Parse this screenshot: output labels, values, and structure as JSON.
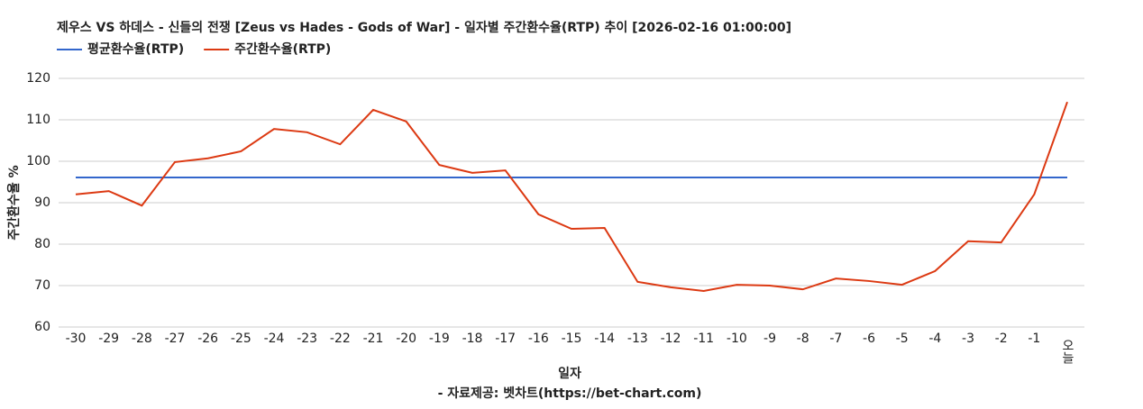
{
  "chart_data": {
    "type": "line",
    "title": "제우스 VS 하데스 - 신들의 전쟁 [Zeus vs Hades - Gods of War] - 일자별 주간환수율(RTP) 추이 [2026-02-16 01:00:00]",
    "x_label": "일자",
    "y_label": "주간환수율 %",
    "source": "- 자료제공: 벳차트(https://bet-chart.com)",
    "categories": [
      "-30",
      "-29",
      "-28",
      "-27",
      "-26",
      "-25",
      "-24",
      "-23",
      "-22",
      "-21",
      "-20",
      "-19",
      "-18",
      "-17",
      "-16",
      "-15",
      "-14",
      "-13",
      "-12",
      "-11",
      "-10",
      "-9",
      "-8",
      "-7",
      "-6",
      "-5",
      "-4",
      "-3",
      "-2",
      "-1",
      "오늘"
    ],
    "series": [
      {
        "name": "평균환수율(RTP)",
        "color": "#3366cc",
        "values": [
          96.1,
          96.1,
          96.1,
          96.1,
          96.1,
          96.1,
          96.1,
          96.1,
          96.1,
          96.1,
          96.1,
          96.1,
          96.1,
          96.1,
          96.1,
          96.1,
          96.1,
          96.1,
          96.1,
          96.1,
          96.1,
          96.1,
          96.1,
          96.1,
          96.1,
          96.1,
          96.1,
          96.1,
          96.1,
          96.1,
          96.1
        ]
      },
      {
        "name": "주간환수율(RTP)",
        "color": "#dc3912",
        "values": [
          92,
          92.8,
          89.3,
          99.8,
          100.7,
          102.4,
          107.8,
          107,
          104.1,
          112.4,
          109.6,
          99.1,
          97.2,
          97.8,
          87.2,
          83.7,
          83.9,
          70.9,
          69.6,
          68.7,
          70.2,
          70,
          69.1,
          71.7,
          71.1,
          70.2,
          73.5,
          80.7,
          80.4,
          92,
          114.3
        ]
      }
    ],
    "ylim": [
      60,
      120
    ],
    "yticks": [
      60,
      70,
      80,
      90,
      100,
      110,
      120
    ],
    "grid": true,
    "legend": "top-left"
  }
}
